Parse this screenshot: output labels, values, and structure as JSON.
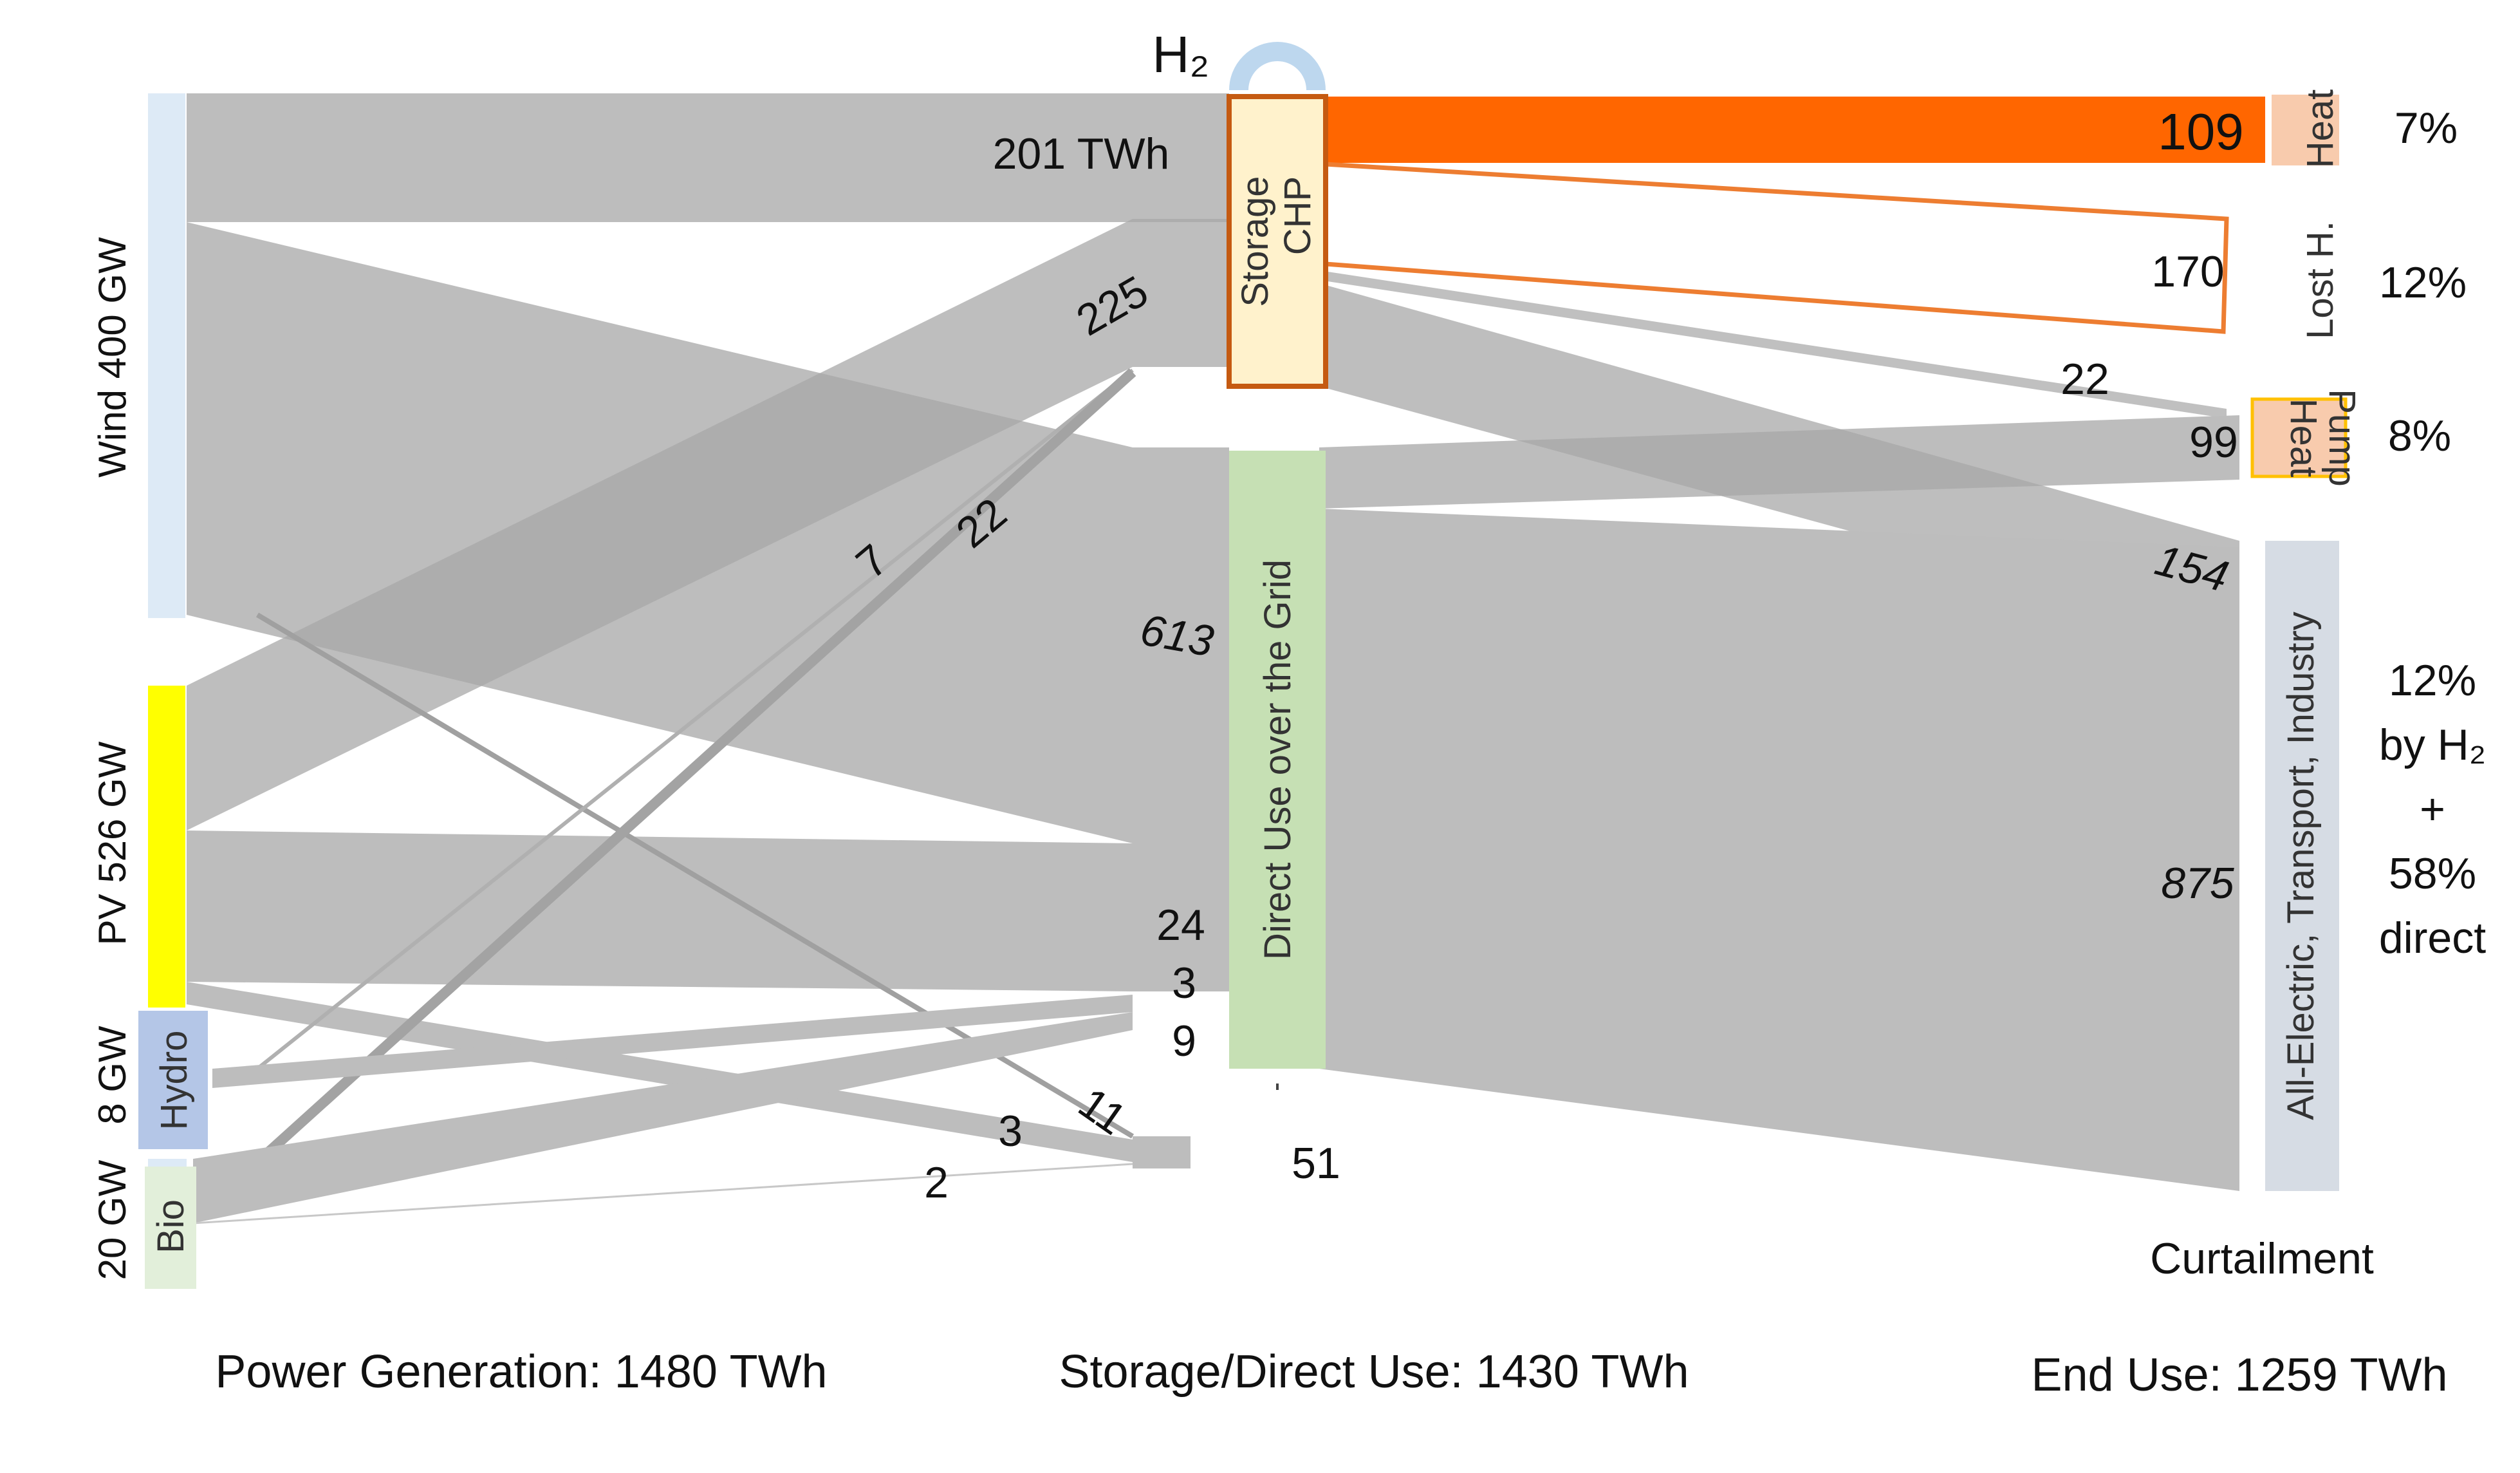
{
  "colors": {
    "flow": "#bdbdbd",
    "wind": "#ddeaf6",
    "pv": "#ffff00",
    "hydro": "#b4c6e7",
    "bio": "#e2efda",
    "storage": "#fff2cc",
    "storage_border": "#c55a11",
    "direct": "#c6e0b4",
    "h2_arc": "#bdd7ee",
    "heat_flow": "#ff6600",
    "heat_node": "#f8cbad",
    "heatpump_node": "#f8cbad",
    "heatpump_border": "#ffc000",
    "enduse_node": "#d6dce4"
  },
  "sources": {
    "wind": "Wind 400 GW",
    "pv": "PV 526 GW",
    "hydro_cap": "8 GW",
    "hydro": "Hydro",
    "bio_cap": "20 GW",
    "bio": "Bio"
  },
  "middle": {
    "h2": "H₂",
    "storage": "Storage",
    "chp": "CHP",
    "direct": "Direct Use over the Grid"
  },
  "ends": {
    "heat": "Heat",
    "lost": "Lost H.",
    "heat_pump_1": "Heat",
    "heat_pump_2": "Pump",
    "all_electric": "All-Electric, Transport, Industry",
    "curtailment": "Curtailment"
  },
  "flow_labels": {
    "wind_storage": "201 TWh",
    "pv_storage": "225",
    "bio_storage": "22",
    "hydro_storage": "7",
    "wind_direct": "613",
    "pv_direct": "24",
    "hydro_direct": "3",
    "bio_direct": "9",
    "wind_curt": "11",
    "pv_curt": "3",
    "bio_curt": "2",
    "curtailment_total": "51",
    "heat": "109",
    "lost": "170",
    "storage_heatpump": "22",
    "direct_heatpump": "99",
    "storage_enduse": "154",
    "direct_enduse": "875"
  },
  "percentages": {
    "heat": "7%",
    "lost": "12%",
    "heat_pump": "8%",
    "enduse_1": "12%",
    "enduse_2": "by H₂",
    "enduse_3": "+",
    "enduse_4": "58%",
    "enduse_5": "direct"
  },
  "footer": {
    "generation": "Power Generation: 1480 TWh",
    "storage_direct": "Storage/Direct Use: 1430 TWh",
    "end_use": "End Use: 1259 TWh"
  }
}
